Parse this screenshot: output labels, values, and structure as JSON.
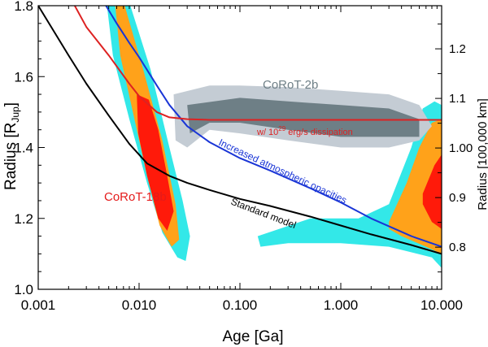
{
  "chart_data": {
    "type": "line",
    "xlabel": "Age [Ga]",
    "ylabel_main": "Radius [R",
    "ylabel_sub": "Jup",
    "ylabel_close": "]",
    "y2label": "Radius [100,000 km]",
    "x_scale": "log",
    "xlim": [
      0.001,
      10.0
    ],
    "ylim": [
      1.0,
      1.8
    ],
    "y2lim": [
      0.715,
      1.287
    ],
    "x_ticks": [
      0.001,
      0.01,
      0.1,
      1.0,
      10.0
    ],
    "x_tick_labels": [
      "0.001",
      "0.010",
      "0.100",
      "1.000",
      "10.000"
    ],
    "y_ticks": [
      1.0,
      1.2,
      1.4,
      1.6,
      1.8
    ],
    "y_tick_labels": [
      "1.0",
      "1.2",
      "1.4",
      "1.6",
      "1.8"
    ],
    "y2_ticks": [
      0.8,
      0.9,
      1.0,
      1.1,
      1.2
    ],
    "y2_tick_labels": [
      "0.8",
      "0.9",
      "1.00",
      "1.1",
      "1.2"
    ],
    "series": [
      {
        "name": "Standard model",
        "color": "#000000",
        "x": [
          0.001,
          0.002,
          0.003,
          0.005,
          0.008,
          0.012,
          0.02,
          0.03,
          0.05,
          0.1,
          0.2,
          0.5,
          1.0,
          2.0,
          5.0,
          10.0
        ],
        "y": [
          1.8,
          1.66,
          1.58,
          1.49,
          1.41,
          1.355,
          1.32,
          1.3,
          1.28,
          1.255,
          1.235,
          1.205,
          1.18,
          1.155,
          1.125,
          1.1
        ]
      },
      {
        "name": "Increased atmospheric opacities",
        "color": "#1a35d6",
        "x": [
          0.0047,
          0.006,
          0.008,
          0.01,
          0.015,
          0.02,
          0.03,
          0.05,
          0.1,
          0.2,
          0.5,
          1.0,
          2.0,
          5.0,
          10.0
        ],
        "y": [
          1.8,
          1.75,
          1.695,
          1.655,
          1.575,
          1.52,
          1.46,
          1.415,
          1.37,
          1.335,
          1.285,
          1.245,
          1.2,
          1.15,
          1.12
        ]
      },
      {
        "name": "w/ 10^29 erg/s dissipation",
        "color": "#dd2222",
        "x": [
          0.0023,
          0.003,
          0.005,
          0.008,
          0.01,
          0.015,
          0.02,
          0.03,
          0.05,
          0.1,
          1.0,
          10.0
        ],
        "y": [
          1.8,
          1.74,
          1.66,
          1.58,
          1.545,
          1.5,
          1.485,
          1.48,
          1.478,
          1.478,
          1.478,
          1.478
        ]
      }
    ],
    "regions": [
      {
        "name": "CoRoT-18b outer",
        "color": "#33e8e8",
        "points": [
          [
            0.0048,
            1.8
          ],
          [
            0.0082,
            1.8
          ],
          [
            0.013,
            1.62
          ],
          [
            0.02,
            1.4
          ],
          [
            0.027,
            1.25
          ],
          [
            0.032,
            1.15
          ],
          [
            0.029,
            1.08
          ],
          [
            0.024,
            1.09
          ],
          [
            0.017,
            1.16
          ],
          [
            0.012,
            1.3
          ],
          [
            0.008,
            1.48
          ],
          [
            0.0055,
            1.66
          ]
        ]
      },
      {
        "name": "CoRoT-18b middle",
        "color": "#ffa21a",
        "points": [
          [
            0.0058,
            1.8
          ],
          [
            0.0072,
            1.8
          ],
          [
            0.011,
            1.62
          ],
          [
            0.017,
            1.42
          ],
          [
            0.023,
            1.24
          ],
          [
            0.025,
            1.14
          ],
          [
            0.021,
            1.12
          ],
          [
            0.016,
            1.18
          ],
          [
            0.012,
            1.32
          ],
          [
            0.009,
            1.48
          ],
          [
            0.0065,
            1.66
          ]
        ]
      },
      {
        "name": "CoRoT-18b inner",
        "color": "#ff1a0a",
        "points": [
          [
            0.0095,
            1.55
          ],
          [
            0.0125,
            1.535
          ],
          [
            0.0155,
            1.45
          ],
          [
            0.019,
            1.32
          ],
          [
            0.022,
            1.22
          ],
          [
            0.019,
            1.165
          ],
          [
            0.0155,
            1.2
          ],
          [
            0.012,
            1.32
          ],
          [
            0.0098,
            1.44
          ]
        ]
      },
      {
        "name": "CoRoT-2b envelope",
        "color": "#33e8e8",
        "points": [
          [
            0.15,
            1.15
          ],
          [
            0.5,
            1.2
          ],
          [
            1.5,
            1.2
          ],
          [
            3.0,
            1.24
          ],
          [
            5.0,
            1.4
          ],
          [
            6.5,
            1.51
          ],
          [
            8.5,
            1.53
          ],
          [
            10.0,
            1.52
          ],
          [
            10.0,
            1.06
          ],
          [
            8.0,
            1.09
          ],
          [
            3.0,
            1.12
          ],
          [
            1.0,
            1.13
          ],
          [
            0.3,
            1.13
          ],
          [
            0.16,
            1.12
          ]
        ]
      },
      {
        "name": "CoRoT-2b middle",
        "color": "#ffa21a",
        "points": [
          [
            3.0,
            1.19
          ],
          [
            4.5,
            1.3
          ],
          [
            6.0,
            1.4
          ],
          [
            8.0,
            1.47
          ],
          [
            10.0,
            1.48
          ],
          [
            10.0,
            1.1
          ],
          [
            7.0,
            1.12
          ],
          [
            4.0,
            1.15
          ],
          [
            3.0,
            1.17
          ]
        ]
      },
      {
        "name": "CoRoT-2b inner",
        "color": "#ff1a0a",
        "points": [
          [
            6.5,
            1.27
          ],
          [
            8.5,
            1.35
          ],
          [
            10.0,
            1.38
          ],
          [
            10.0,
            1.17
          ],
          [
            8.0,
            1.19
          ],
          [
            6.5,
            1.24
          ]
        ]
      },
      {
        "name": "CoRoT-2b light",
        "color": "#c4ccd4",
        "points": [
          [
            0.022,
            1.55
          ],
          [
            0.05,
            1.575
          ],
          [
            0.1,
            1.575
          ],
          [
            0.3,
            1.57
          ],
          [
            1.0,
            1.56
          ],
          [
            3.0,
            1.55
          ],
          [
            6.0,
            1.52
          ],
          [
            8.0,
            1.46
          ],
          [
            6.0,
            1.42
          ],
          [
            3.0,
            1.4
          ],
          [
            1.0,
            1.4
          ],
          [
            0.3,
            1.42
          ],
          [
            0.1,
            1.44
          ],
          [
            0.05,
            1.45
          ],
          [
            0.03,
            1.4
          ],
          [
            0.023,
            1.42
          ]
        ]
      },
      {
        "name": "CoRoT-2b dark",
        "color": "#6e7f86",
        "points": [
          [
            0.03,
            1.52
          ],
          [
            0.1,
            1.54
          ],
          [
            0.3,
            1.53
          ],
          [
            1.0,
            1.52
          ],
          [
            3.0,
            1.51
          ],
          [
            6.0,
            1.48
          ],
          [
            6.0,
            1.43
          ],
          [
            3.0,
            1.43
          ],
          [
            1.0,
            1.43
          ],
          [
            0.3,
            1.45
          ],
          [
            0.1,
            1.47
          ],
          [
            0.05,
            1.47
          ],
          [
            0.032,
            1.44
          ]
        ]
      }
    ],
    "annotations": [
      {
        "name": "label-corot2b",
        "text": "CoRoT-2b",
        "color": "#6e7f86"
      },
      {
        "name": "label-corot18b",
        "text": "CoRoT-18b",
        "color": "#e41a1a"
      },
      {
        "name": "label-standard-model",
        "text": "Standard model",
        "color": "#000000"
      },
      {
        "name": "label-opacities",
        "text": "Increased atmospheric opacities",
        "color": "#1a35d6"
      },
      {
        "name": "label-dissipation-prefix",
        "text": "w/ 10",
        "color": "#dd2222"
      },
      {
        "name": "label-dissipation-exp",
        "text": "29",
        "color": "#dd2222"
      },
      {
        "name": "label-dissipation-suffix",
        "text": " erg/s dissipation",
        "color": "#dd2222"
      }
    ]
  }
}
